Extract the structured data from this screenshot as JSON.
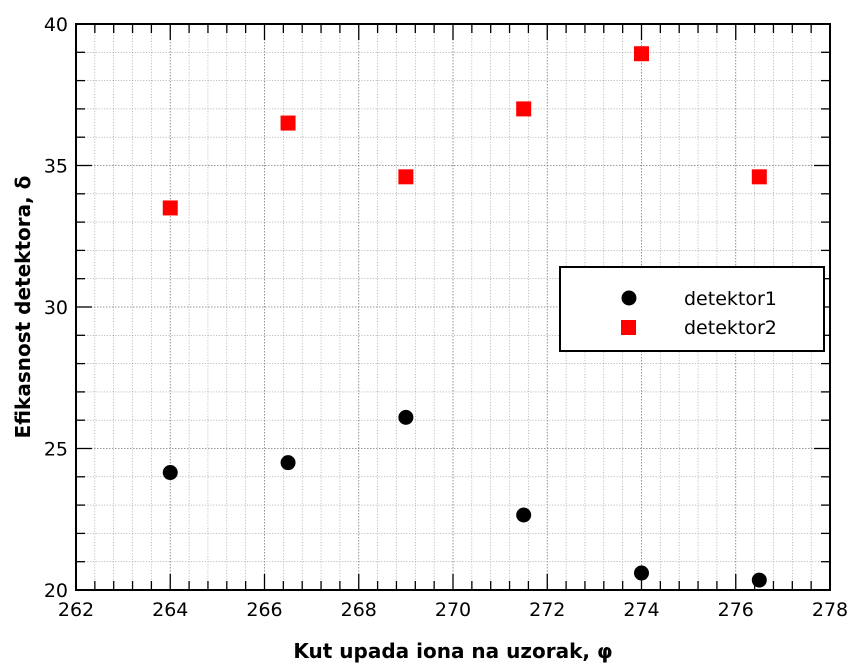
{
  "chart_data": {
    "type": "scatter",
    "xlabel": "Kut upada iona na uzorak, φ",
    "ylabel": "Efikasnost detektora, δ",
    "xlim": [
      262,
      278
    ],
    "ylim": [
      20,
      40
    ],
    "x_ticks": [
      "262",
      "264",
      "266",
      "268",
      "270",
      "272",
      "274",
      "276",
      "278"
    ],
    "y_ticks": [
      "20",
      "25",
      "30",
      "35",
      "40"
    ],
    "grid": true,
    "legend_position": "right",
    "series": [
      {
        "name": "detektor1",
        "marker": "circle",
        "color": "#000000",
        "x": [
          264,
          266.5,
          269,
          271.5,
          274,
          276.5
        ],
        "y": [
          24.15,
          24.5,
          26.1,
          22.65,
          20.6,
          20.35
        ]
      },
      {
        "name": "detektor2",
        "marker": "square",
        "color": "#ff0000",
        "x": [
          264,
          266.5,
          269,
          271.5,
          274,
          276.5
        ],
        "y": [
          33.5,
          36.5,
          34.6,
          37.0,
          38.95,
          34.6
        ]
      }
    ]
  }
}
